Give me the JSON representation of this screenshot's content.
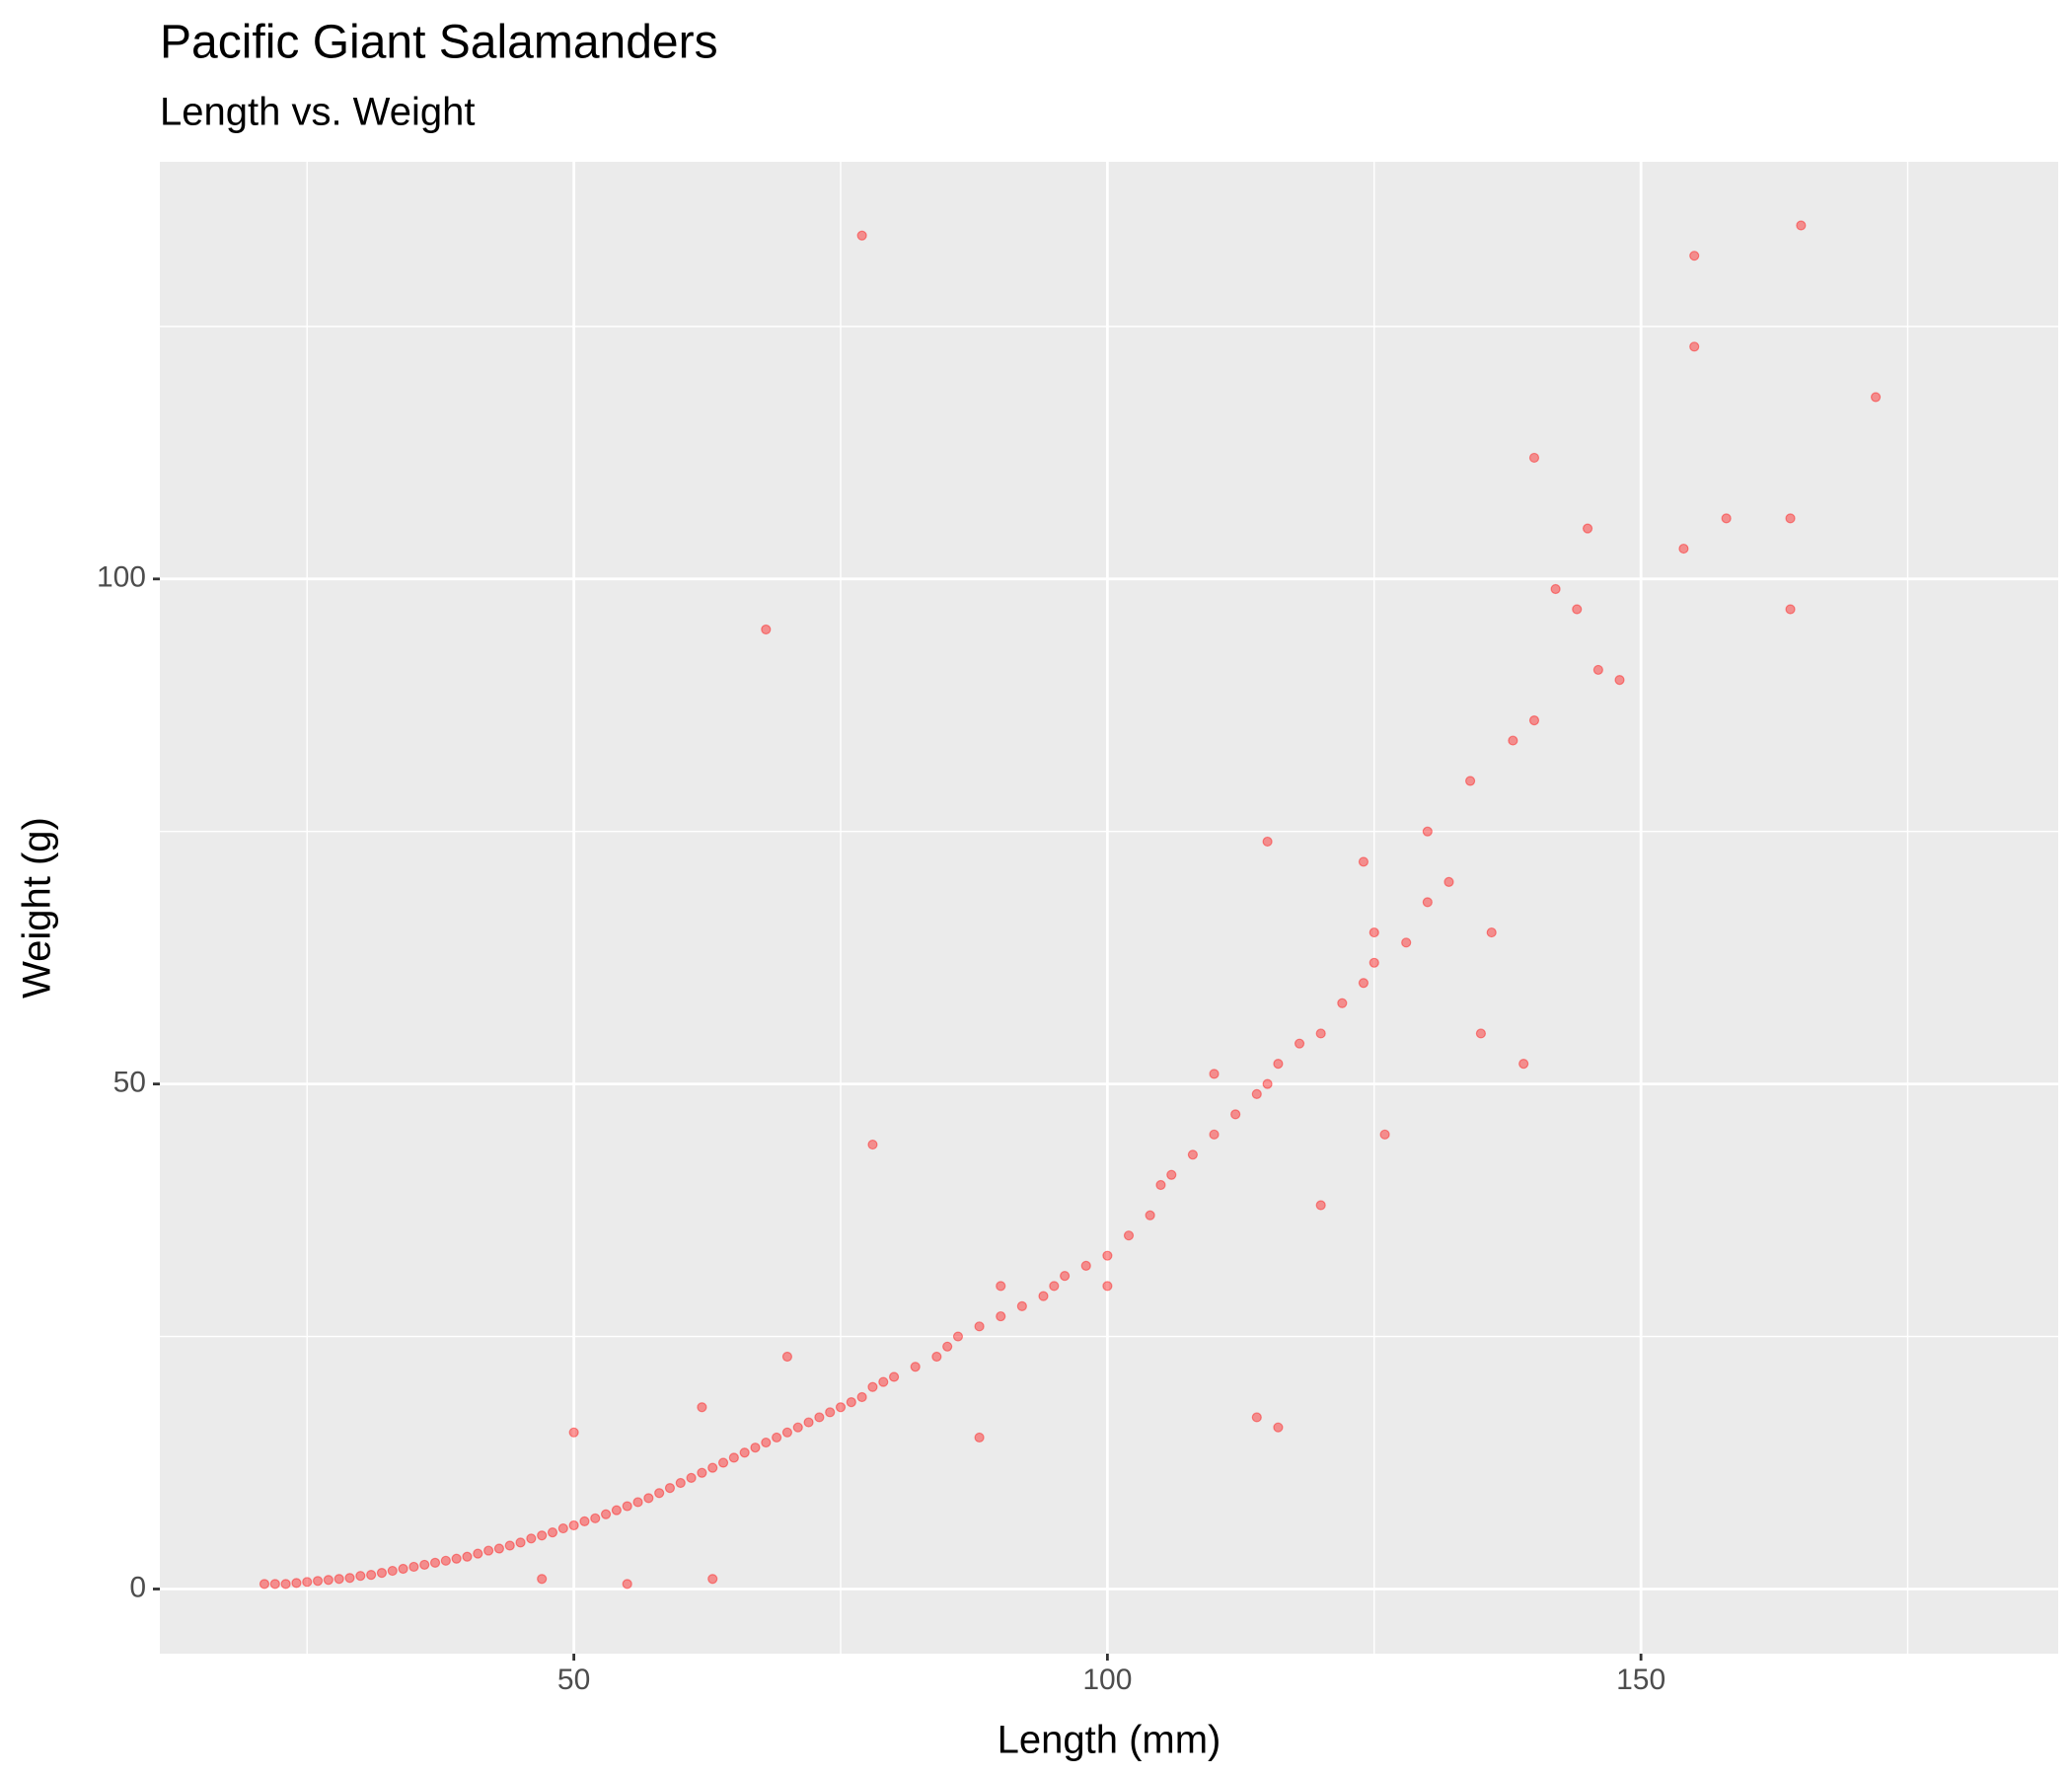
{
  "chart_data": {
    "type": "scatter",
    "title": "Pacific Giant Salamanders",
    "subtitle": "Length vs. Weight",
    "x_label": "Length (mm)",
    "y_label": "Weight (g)",
    "color": "#ff0000",
    "alpha": 0.4,
    "grid": true,
    "panel_color": "#ebebeb",
    "xlim": [
      11.2,
      189.1
    ],
    "ylim": [
      -6.4,
      141.3
    ],
    "xticks": [
      50,
      100,
      150
    ],
    "yticks": [
      0,
      50,
      100
    ],
    "x_minor_breaks": [
      25,
      75,
      125,
      175
    ],
    "y_minor_breaks": [
      25,
      75,
      125
    ],
    "x": [
      21,
      22,
      23,
      24,
      25,
      26,
      27,
      28,
      29,
      30,
      31,
      32,
      33,
      34,
      35,
      36,
      37,
      38,
      39,
      40,
      41,
      42,
      43,
      44,
      45,
      46,
      47,
      48,
      49,
      50,
      50,
      51,
      52,
      53,
      54,
      55,
      56,
      57,
      58,
      59,
      60,
      61,
      62,
      63,
      64,
      65,
      66,
      67,
      68,
      69,
      70,
      71,
      72,
      73,
      74,
      75,
      76,
      77,
      78,
      79,
      80,
      82,
      84,
      85,
      86,
      88,
      90,
      92,
      94,
      95,
      96,
      98,
      100,
      102,
      104,
      105,
      106,
      108,
      110,
      112,
      114,
      115,
      116,
      118,
      120,
      120,
      122,
      124,
      125,
      126,
      128,
      130,
      130,
      132,
      134,
      136,
      138,
      140,
      140,
      142,
      144,
      145,
      146,
      148,
      154,
      155,
      155,
      158,
      164,
      164,
      165,
      172,
      77,
      68,
      78,
      114,
      116,
      90,
      47,
      55,
      63,
      88,
      100,
      110,
      125,
      135,
      124,
      139,
      115,
      62,
      70
    ],
    "values": [
      0.5,
      0.5,
      0.5,
      0.6,
      0.7,
      0.8,
      0.9,
      1,
      1.1,
      1.3,
      1.4,
      1.6,
      1.8,
      2,
      2.2,
      2.4,
      2.6,
      2.8,
      3,
      3.2,
      3.5,
      3.8,
      4,
      4.3,
      4.6,
      5,
      5.3,
      5.6,
      6,
      6.3,
      15.5,
      6.7,
      7,
      7.4,
      7.8,
      8.2,
      8.6,
      9,
      9.5,
      10,
      10.5,
      11,
      11.5,
      12,
      12.5,
      13,
      13.5,
      14,
      14.5,
      15,
      15.5,
      16,
      16.5,
      17,
      17.5,
      18,
      18.5,
      19,
      20,
      20.5,
      21,
      22,
      23,
      24,
      25,
      26,
      27,
      28,
      29,
      30,
      31,
      32,
      33,
      35,
      37,
      40,
      41,
      43,
      45,
      47,
      49,
      50,
      52,
      54,
      55,
      38,
      58,
      60,
      62,
      45,
      64,
      68,
      75,
      70,
      80,
      65,
      84,
      86,
      112,
      99,
      97,
      105,
      91,
      90,
      103,
      123,
      132,
      106,
      106,
      97,
      135,
      118,
      134,
      95,
      44,
      17,
      16,
      30,
      1,
      0.5,
      1,
      15,
      30,
      51,
      65,
      55,
      72,
      52,
      74,
      18,
      23
    ]
  }
}
